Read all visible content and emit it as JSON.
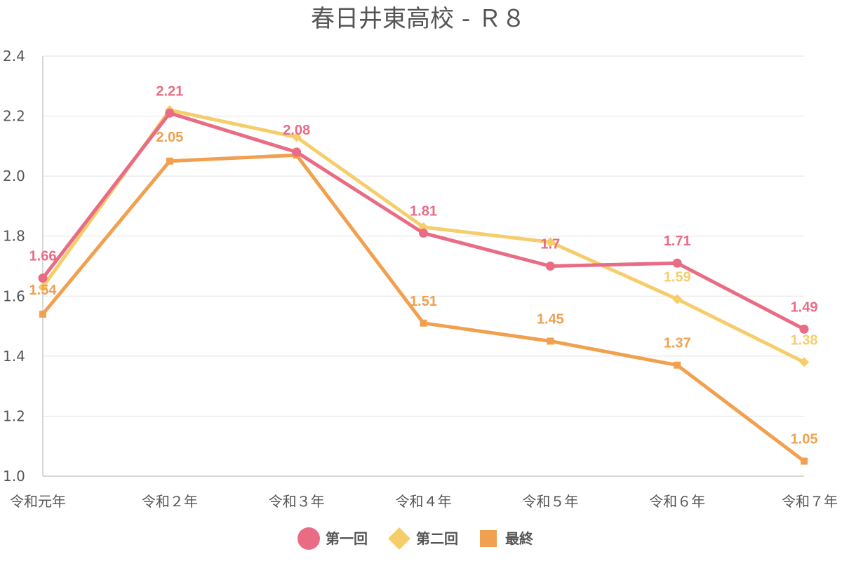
{
  "chart_data": {
    "type": "line",
    "title": "春日井東高校 - Ｒ８",
    "categories": [
      "令和元年",
      "令和２年",
      "令和３年",
      "令和４年",
      "令和５年",
      "令和６年",
      "令和７年"
    ],
    "ylim": [
      1.0,
      2.4
    ],
    "yticks": [
      "1.0",
      "1.2",
      "1.4",
      "1.6",
      "1.8",
      "2.0",
      "2.2",
      "2.4"
    ],
    "grid": true,
    "legend_position": "bottom-center",
    "xlabel": "",
    "ylabel": "",
    "series": [
      {
        "name": "第一回",
        "color": "#e96b84",
        "marker": "circle",
        "values": [
          1.66,
          2.21,
          2.08,
          1.81,
          1.7,
          1.71,
          1.49
        ],
        "labels": [
          "1.66",
          "2.21",
          "2.08",
          "1.81",
          "1.7",
          "1.71",
          "1.49"
        ]
      },
      {
        "name": "第二回",
        "color": "#f5ce6b",
        "marker": "diamond",
        "values": [
          1.63,
          2.22,
          2.13,
          1.83,
          1.78,
          1.59,
          1.38
        ],
        "labels": [
          "",
          "",
          "",
          "",
          "",
          "1.59",
          "1.38"
        ]
      },
      {
        "name": "最終",
        "color": "#f0a04e",
        "marker": "square",
        "values": [
          1.54,
          2.05,
          2.07,
          1.51,
          1.45,
          1.37,
          1.05
        ],
        "labels": [
          "1.54",
          "2.05",
          "",
          "1.51",
          "1.45",
          "1.37",
          "1.05"
        ]
      }
    ]
  }
}
